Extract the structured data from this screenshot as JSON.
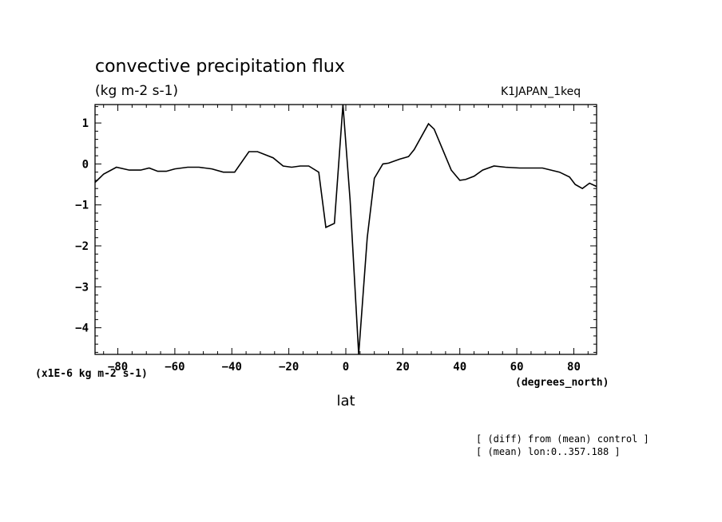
{
  "chart_data": {
    "type": "line",
    "title": "convective precipitation flux",
    "units": "(kg m-2 s-1)",
    "run_label": "K1JAPAN_1keq",
    "scale_note": "(x1E-6 kg m-2 s-1)",
    "xlabel": "lat",
    "xunit_label": "(degrees_north)",
    "footnotes": [
      "[ (diff) from (mean) control ]",
      "[ (mean) lon:0..357.188 ]"
    ],
    "xlim": [
      -88,
      88
    ],
    "ylim": [
      -4.65,
      1.45
    ],
    "xticks": [
      -80,
      -60,
      -40,
      -20,
      0,
      20,
      40,
      60,
      80
    ],
    "yticks": [
      1,
      0,
      -1,
      -2,
      -3,
      -4
    ],
    "x": [
      -88,
      -85,
      -80.5,
      -76,
      -72,
      -69,
      -66,
      -63,
      -60,
      -55.5,
      -51.5,
      -47,
      -43,
      -39,
      -34,
      -31,
      -25.5,
      -22,
      -19,
      -16,
      -13,
      -9.5,
      -7,
      -4,
      -1,
      1.5,
      4.5,
      7.5,
      10,
      13,
      15,
      19,
      22,
      24,
      29,
      31,
      34,
      37,
      40,
      42,
      45,
      48,
      52,
      56,
      61,
      65,
      69,
      72,
      75,
      78.5,
      80.5,
      83,
      85.5,
      88
    ],
    "y": [
      -0.45,
      -0.25,
      -0.08,
      -0.15,
      -0.15,
      -0.1,
      -0.18,
      -0.18,
      -0.12,
      -0.08,
      -0.08,
      -0.12,
      -0.2,
      -0.2,
      0.3,
      0.3,
      0.15,
      -0.05,
      -0.08,
      -0.05,
      -0.05,
      -0.2,
      -1.55,
      -1.45,
      1.45,
      -0.9,
      -4.65,
      -1.8,
      -0.35,
      0,
      0.02,
      0.12,
      0.18,
      0.35,
      0.98,
      0.85,
      0.35,
      -0.15,
      -0.4,
      -0.38,
      -0.3,
      -0.15,
      -0.05,
      -0.08,
      -0.1,
      -0.1,
      -0.1,
      -0.15,
      -0.2,
      -0.32,
      -0.5,
      -0.6,
      -0.47,
      -0.55
    ]
  }
}
